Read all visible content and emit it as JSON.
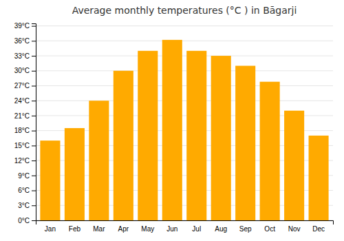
{
  "chart_data": {
    "type": "bar",
    "title": "Average monthly temperatures (°C ) in Bāgarji",
    "categories": [
      "Jan",
      "Feb",
      "Mar",
      "Apr",
      "May",
      "Jun",
      "Jul",
      "Aug",
      "Sep",
      "Oct",
      "Nov",
      "Dec"
    ],
    "values": [
      16,
      18.5,
      24,
      30,
      34,
      36.2,
      34,
      33,
      31,
      27.8,
      22,
      17
    ],
    "color": "#FFAA00",
    "ylim": [
      0,
      39.5
    ],
    "yticks": [
      {
        "value": 0,
        "label": "0°C"
      },
      {
        "value": 3,
        "label": "3°C"
      },
      {
        "value": 6,
        "label": "6°C"
      },
      {
        "value": 9,
        "label": "9°C"
      },
      {
        "value": 12,
        "label": "12°C"
      },
      {
        "value": 15,
        "label": "15°C"
      },
      {
        "value": 18,
        "label": "18°C"
      },
      {
        "value": 21,
        "label": "21°C"
      },
      {
        "value": 24,
        "label": "24°C"
      },
      {
        "value": 27,
        "label": "27°C"
      },
      {
        "value": 30,
        "label": "30°C"
      },
      {
        "value": 33,
        "label": "33°C"
      },
      {
        "value": 36,
        "label": "36°C"
      },
      {
        "value": 39,
        "label": "39°C"
      }
    ],
    "grid": true
  }
}
